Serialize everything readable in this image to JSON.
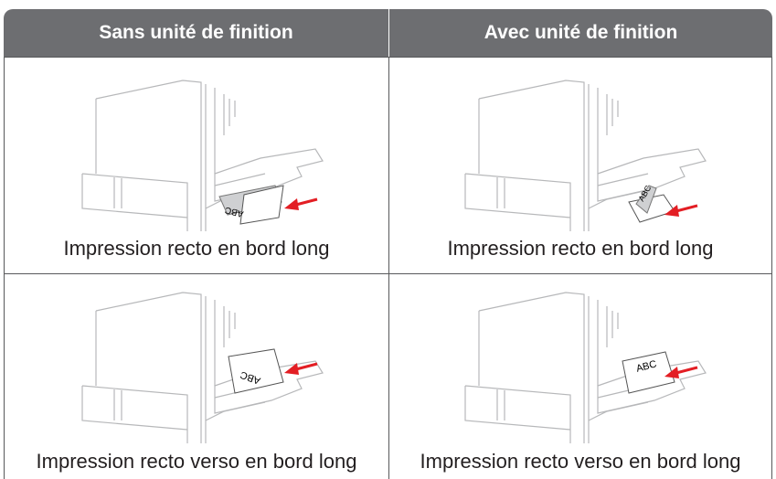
{
  "table": {
    "header": [
      "Sans unité de finition",
      "Avec unité de finition"
    ],
    "rows": [
      [
        "Impression recto en bord long",
        "Impression recto en bord long"
      ],
      [
        "Impression recto verso en bord long",
        "Impression recto verso en bord long"
      ]
    ]
  },
  "paper_labels": [
    "ABC",
    "ABC",
    "ABC",
    "ABC"
  ]
}
